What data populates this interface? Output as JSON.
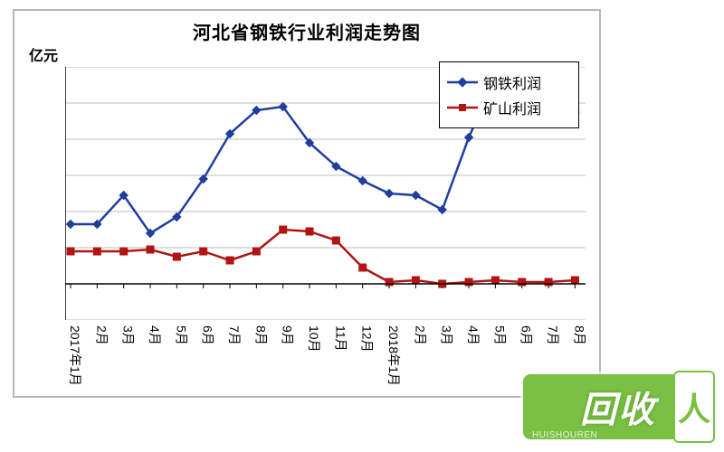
{
  "chart": {
    "type": "line",
    "title": "河北省钢铁行业利润走势图",
    "y_axis_unit": "亿元",
    "background_color": "#ffffff",
    "border_color": "#b7b7b7",
    "grid_color": "#bfbfbf",
    "axis_color": "#000000",
    "title_fontsize": 20,
    "label_fontsize": 14,
    "ylim": [
      -20,
      120
    ],
    "ytick_step": 20,
    "yticks": [
      -20,
      0,
      20,
      40,
      60,
      80,
      100,
      120
    ],
    "categories": [
      "2017年1月",
      "2月",
      "3月",
      "4月",
      "5月",
      "6月",
      "7月",
      "8月",
      "9月",
      "10月",
      "11月",
      "12月",
      "2018年1月",
      "2月",
      "3月",
      "4月",
      "5月",
      "6月",
      "7月",
      "8月"
    ],
    "series": [
      {
        "name": "钢铁利润",
        "label": "钢铁利润",
        "color": "#1f3e9e",
        "marker": "diamond",
        "marker_size": 9,
        "line_width": 2.5,
        "values": [
          33,
          33,
          49,
          28,
          37,
          58,
          83,
          96,
          98,
          78,
          65,
          57,
          50,
          49,
          41,
          81,
          114,
          91,
          113,
          95
        ]
      },
      {
        "name": "矿山利润",
        "label": "矿山利润",
        "color": "#b01513",
        "marker": "square",
        "marker_size": 8,
        "line_width": 2.5,
        "values": [
          18,
          18,
          18,
          19,
          15,
          18,
          13,
          18,
          30,
          29,
          24,
          9,
          1,
          2,
          0,
          1,
          2,
          1,
          1,
          2
        ]
      }
    ],
    "legend": {
      "position": "top-right",
      "border_color": "#000000",
      "background": "#ffffff"
    },
    "xlabel_orientation": "vertical"
  },
  "watermark": {
    "main_text": "回收",
    "side_text": "人",
    "url": "HUISHOUREN",
    "bg_color": "#7ac043",
    "text_color": "#ffffff"
  }
}
